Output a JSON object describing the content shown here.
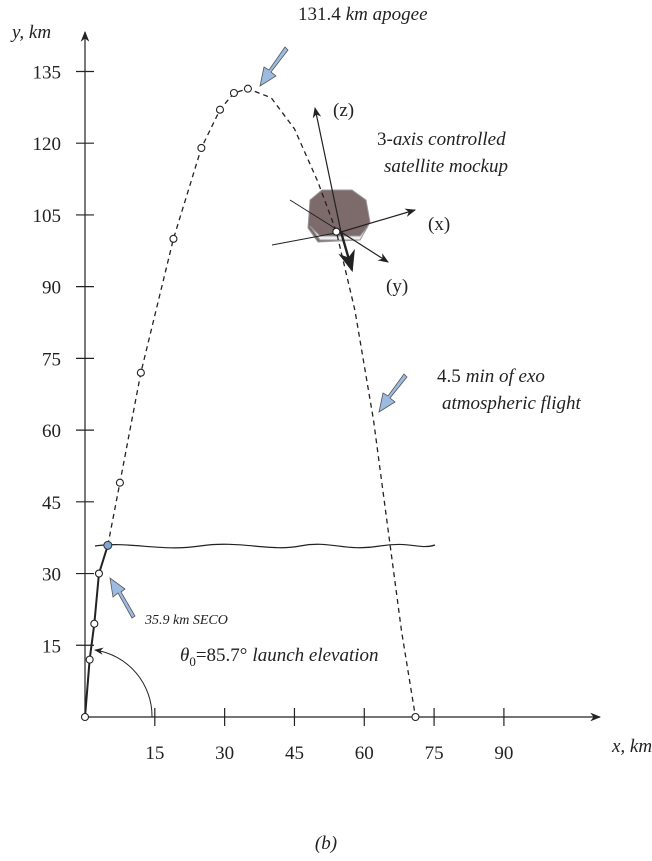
{
  "chart_data": {
    "type": "trajectory",
    "xlabel": "x, km",
    "ylabel": "y, km",
    "xlim": [
      0,
      110
    ],
    "ylim": [
      0,
      142
    ],
    "xticks": [
      15,
      30,
      45,
      60,
      75,
      90
    ],
    "yticks": [
      15,
      30,
      45,
      60,
      75,
      90,
      105,
      120,
      135
    ],
    "series": [
      {
        "style": "solid",
        "color": "#222222",
        "x": [
          0,
          1,
          2,
          3,
          4.9
        ],
        "y": [
          0,
          12,
          19.5,
          30,
          35.9
        ]
      },
      {
        "style": "dashed",
        "color": "#222222",
        "x": [
          4.9,
          7.5,
          12,
          19,
          25,
          29,
          32,
          35,
          40,
          45,
          50,
          54,
          58,
          62,
          65,
          68,
          71
        ],
        "y": [
          35.9,
          49,
          72,
          100,
          119,
          127,
          130.5,
          131.4,
          129.5,
          123,
          112,
          101.5,
          85,
          62,
          40,
          18,
          0
        ]
      }
    ],
    "markers": {
      "color": "#222222",
      "x": [
        0,
        1,
        2,
        3,
        7.5,
        12,
        19,
        25,
        29,
        32,
        35,
        54,
        71
      ],
      "y": [
        0,
        12,
        19.5,
        30,
        49,
        72,
        100,
        119,
        127,
        130.5,
        131.4,
        101.5,
        0
      ]
    },
    "seco_point": {
      "x": 4.9,
      "y": 35.9,
      "color": "#7fa7d6"
    },
    "annotations": {
      "apogee": [
        "131.4",
        "km apogee"
      ],
      "satellite": [
        "3-",
        "axis controlled",
        "satellite mockup"
      ],
      "axes": [
        "(z)",
        "(x)",
        "(y)"
      ],
      "flight": [
        "4.5",
        "min of exo",
        "atmospheric flight"
      ],
      "seco": "35.9 km SECO",
      "launch": [
        "θ",
        "0",
        "=85.7°",
        "launch elevation"
      ]
    },
    "caption": "(b)"
  }
}
